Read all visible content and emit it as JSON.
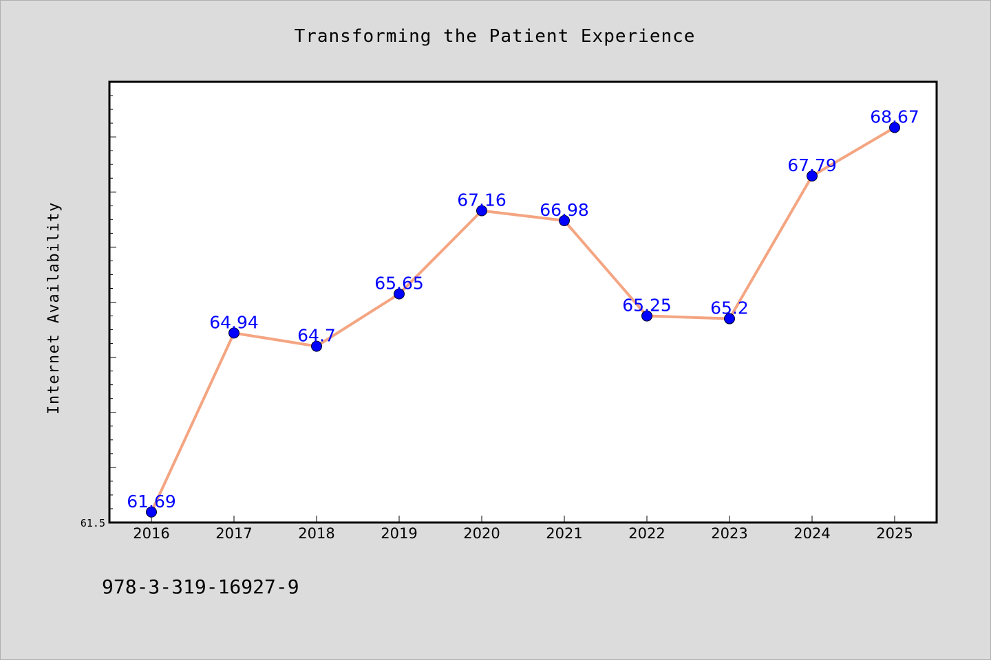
{
  "chart_data": {
    "type": "line",
    "title": "Transforming the Patient Experience",
    "ylabel": "Internet Availability",
    "xlabel": "",
    "categories": [
      "2016",
      "2017",
      "2018",
      "2019",
      "2020",
      "2021",
      "2022",
      "2023",
      "2024",
      "2025"
    ],
    "series": [
      {
        "values": [
          61.69,
          64.94,
          64.7,
          65.65,
          67.16,
          66.98,
          65.25,
          65.2,
          67.79,
          68.67
        ],
        "labels": [
          "61.69",
          "64.94",
          "64.7",
          "65.65",
          "67.16",
          "66.98",
          "65.25",
          "65.2",
          "67.79",
          "68.67"
        ]
      }
    ],
    "ylim": [
      61.5,
      69.5
    ],
    "ytick_labels": [
      "61.5"
    ],
    "grid": false,
    "colors": {
      "line": "#f4a582",
      "marker": "#0000ff",
      "label": "#0000ff",
      "background": "#dcdcdc",
      "plot_background": "#ffffff"
    }
  },
  "footer": {
    "isbn": "978-3-319-16927-9"
  }
}
